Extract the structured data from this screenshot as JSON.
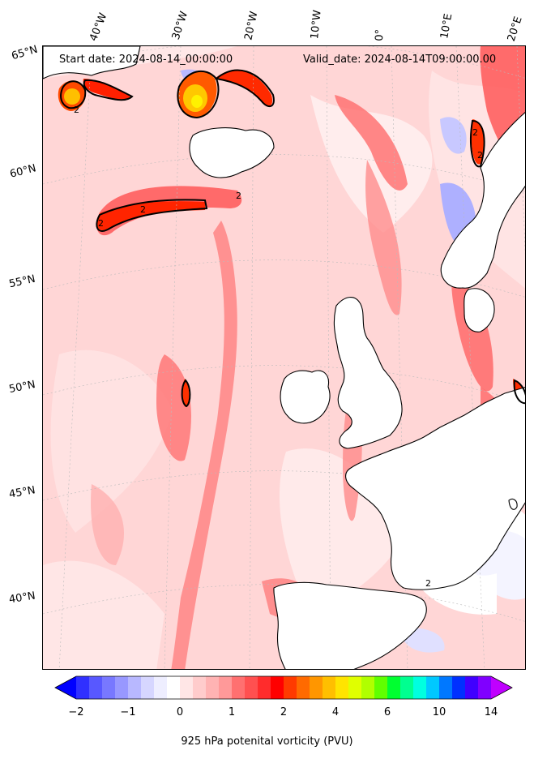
{
  "header": {
    "start_date": "Start date: 2024-08-14_00:00:00",
    "valid_date": "Valid_date: 2024-08-14T09:00:00.00"
  },
  "axes": {
    "longitude_labels": [
      "40°W",
      "30°W",
      "20°W",
      "10°W",
      "0°",
      "10°E",
      "20°E"
    ],
    "latitude_labels": [
      "65°N",
      "60°N",
      "55°N",
      "50°N",
      "45°N",
      "40°N"
    ]
  },
  "contour": {
    "level_label": "2",
    "line_color": "#000000"
  },
  "colorbar": {
    "label": "925 hPa potenital vorticity (PVU)",
    "ticks": [
      "−2",
      "−1",
      "0",
      "1",
      "2",
      "4",
      "6",
      "10",
      "14"
    ],
    "colors": [
      "#0000ff",
      "#3030ff",
      "#5858ff",
      "#7878ff",
      "#9898ff",
      "#b8b8ff",
      "#d6d6ff",
      "#eeeeff",
      "#ffffff",
      "#ffe6e6",
      "#ffcccc",
      "#ffb3b3",
      "#ff9999",
      "#ff7070",
      "#ff5050",
      "#ff2c2c",
      "#ff0000",
      "#ff3a00",
      "#ff6a00",
      "#ff9600",
      "#ffbf00",
      "#ffe400",
      "#e0ff00",
      "#b0ff00",
      "#60ff00",
      "#00ff30",
      "#00ff90",
      "#00ffe0",
      "#00c8ff",
      "#0078ff",
      "#0030ff",
      "#4000ff",
      "#8000ff",
      "#c000ff"
    ]
  },
  "colors": {
    "land_outline": "#000000",
    "graticule": "#bbbbbb",
    "background_pv": "#ffd2d2"
  }
}
